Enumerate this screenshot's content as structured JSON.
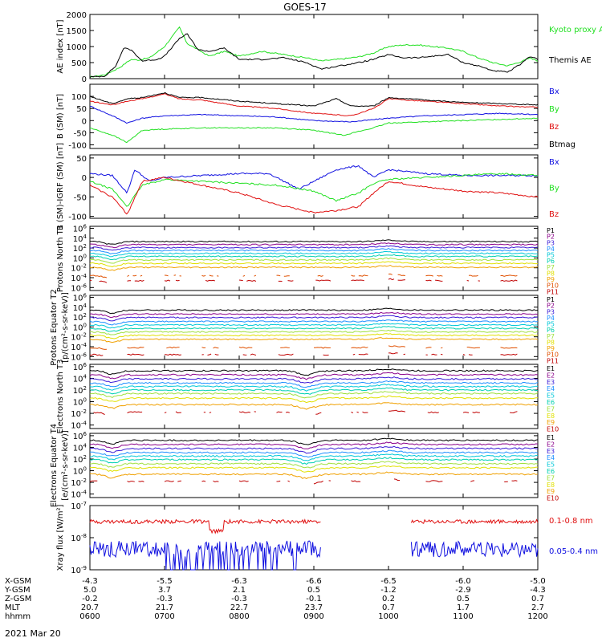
{
  "title": "GOES-17",
  "date_label": "2021 Mar 20",
  "colors": {
    "black": "#000000",
    "red": "#e01010",
    "green": "#22e022",
    "blue": "#1010e0",
    "p": [
      "#000000",
      "#8b008b",
      "#3a1ad6",
      "#1e90ff",
      "#00c8d8",
      "#00d0b0",
      "#a0e040",
      "#e0e000",
      "#f0a000",
      "#e05000",
      "#c00000"
    ],
    "e": [
      "#000000",
      "#8b008b",
      "#3a1ad6",
      "#1e90ff",
      "#00c8d8",
      "#00d0b0",
      "#a0e040",
      "#e0e000",
      "#f0a000",
      "#c00000"
    ]
  },
  "chart_data": [
    {
      "id": "ae",
      "type": "line",
      "ylabel": "AE index [nT]",
      "yticks": [
        "0",
        "500",
        "1000",
        "1500",
        "2000"
      ],
      "ylim": [
        0,
        2000
      ],
      "legend": [
        {
          "label": "Kyoto proxy AE",
          "color": "#22e022"
        },
        {
          "label": "Themis AE",
          "color": "#000000"
        }
      ],
      "series": [
        {
          "name": "Kyoto proxy AE",
          "color": "#22e022",
          "x": [
            6.0,
            6.2,
            6.4,
            6.55,
            6.65,
            6.8,
            7.0,
            7.2,
            7.3,
            7.45,
            7.6,
            7.8,
            8.0,
            8.3,
            8.6,
            8.9,
            9.1,
            9.4,
            9.6,
            9.8,
            10.0,
            10.2,
            10.4,
            10.6,
            10.8,
            11.0,
            11.2,
            11.4,
            11.6,
            11.8,
            11.9,
            12.0
          ],
          "y": [
            50,
            120,
            350,
            600,
            580,
            650,
            1000,
            1600,
            1100,
            900,
            700,
            850,
            700,
            850,
            750,
            650,
            550,
            620,
            680,
            800,
            1000,
            1050,
            1050,
            1000,
            950,
            850,
            650,
            500,
            400,
            550,
            650,
            550
          ]
        },
        {
          "name": "Themis AE",
          "color": "#000000",
          "x": [
            6.0,
            6.2,
            6.35,
            6.45,
            6.55,
            6.7,
            6.9,
            7.0,
            7.2,
            7.3,
            7.45,
            7.6,
            7.8,
            8.0,
            8.3,
            8.6,
            8.9,
            9.1,
            9.4,
            9.6,
            9.8,
            10.0,
            10.2,
            10.4,
            10.6,
            10.8,
            11.0,
            11.2,
            11.4,
            11.6,
            11.8,
            11.9,
            12.0
          ],
          "y": [
            50,
            80,
            400,
            950,
            900,
            550,
            600,
            700,
            1250,
            1400,
            900,
            850,
            950,
            600,
            600,
            650,
            500,
            300,
            420,
            500,
            600,
            750,
            650,
            650,
            700,
            750,
            500,
            400,
            250,
            200,
            500,
            700,
            600
          ]
        }
      ]
    },
    {
      "id": "bsm",
      "type": "line",
      "ylabel": "B (SM) [nT]",
      "yticks": [
        "-100",
        "-50",
        "0",
        "50",
        "100"
      ],
      "ylim": [
        -115,
        150
      ],
      "legend": [
        {
          "label": "Bx",
          "color": "#1010e0"
        },
        {
          "label": "By",
          "color": "#22e022"
        },
        {
          "label": "Bz",
          "color": "#e01010"
        },
        {
          "label": "Btmag",
          "color": "#000000"
        }
      ],
      "series": [
        {
          "name": "Bx",
          "color": "#1010e0",
          "x": [
            6.0,
            6.3,
            6.5,
            6.7,
            7.0,
            7.5,
            8.0,
            8.5,
            9.0,
            9.5,
            10.0,
            10.5,
            11.0,
            11.5,
            12.0
          ],
          "y": [
            60,
            20,
            -10,
            10,
            20,
            25,
            20,
            15,
            0,
            -5,
            10,
            20,
            25,
            30,
            25
          ]
        },
        {
          "name": "By",
          "color": "#22e022",
          "x": [
            6.0,
            6.3,
            6.5,
            6.7,
            7.0,
            7.5,
            8.0,
            8.5,
            9.0,
            9.4,
            9.8,
            10.0,
            10.5,
            11.0,
            11.5,
            12.0
          ],
          "y": [
            -30,
            -60,
            -90,
            -40,
            -35,
            -30,
            -30,
            -30,
            -40,
            -60,
            -30,
            -10,
            -5,
            0,
            5,
            10
          ]
        },
        {
          "name": "Bz",
          "color": "#e01010",
          "x": [
            6.0,
            6.3,
            6.5,
            6.7,
            7.0,
            7.2,
            7.5,
            8.0,
            8.5,
            9.0,
            9.5,
            9.8,
            10.0,
            10.5,
            11.0,
            11.5,
            12.0
          ],
          "y": [
            80,
            65,
            80,
            90,
            110,
            90,
            85,
            60,
            50,
            30,
            20,
            50,
            90,
            80,
            70,
            60,
            55
          ]
        },
        {
          "name": "Btmag",
          "color": "#000000",
          "x": [
            6.0,
            6.3,
            6.5,
            6.7,
            7.0,
            7.2,
            7.5,
            8.0,
            8.5,
            9.0,
            9.3,
            9.5,
            9.8,
            10.0,
            10.5,
            11.0,
            11.5,
            12.0
          ],
          "y": [
            100,
            70,
            90,
            95,
            115,
            95,
            95,
            80,
            70,
            60,
            90,
            60,
            60,
            95,
            85,
            75,
            70,
            65
          ]
        }
      ]
    },
    {
      "id": "dbsm",
      "type": "line",
      "ylabel": "B (SM)-IGRF (SM) [nT]",
      "yticks": [
        "-100",
        "-50",
        "0",
        "50"
      ],
      "ylim": [
        -105,
        58
      ],
      "legend": [
        {
          "label": "Bx",
          "color": "#1010e0"
        },
        {
          "label": "By",
          "color": "#22e022"
        },
        {
          "label": "Bz",
          "color": "#e01010"
        }
      ],
      "series": [
        {
          "name": "Bx",
          "color": "#1010e0",
          "x": [
            6.0,
            6.3,
            6.5,
            6.6,
            6.8,
            7.0,
            7.5,
            8.0,
            8.4,
            8.8,
            9.0,
            9.3,
            9.6,
            9.8,
            10.0,
            10.5,
            11.0,
            11.5,
            12.0
          ],
          "y": [
            10,
            5,
            -40,
            20,
            -10,
            0,
            5,
            10,
            10,
            -30,
            -10,
            20,
            30,
            0,
            20,
            10,
            5,
            5,
            5
          ]
        },
        {
          "name": "By",
          "color": "#22e022",
          "x": [
            6.0,
            6.3,
            6.5,
            6.7,
            7.0,
            7.5,
            8.0,
            8.5,
            9.0,
            9.3,
            9.6,
            9.8,
            10.0,
            10.5,
            11.0,
            11.5,
            12.0
          ],
          "y": [
            -10,
            -30,
            -75,
            -20,
            -5,
            -10,
            -15,
            -20,
            -35,
            -60,
            -40,
            -15,
            -5,
            0,
            5,
            10,
            5
          ]
        },
        {
          "name": "Bz",
          "color": "#e01010",
          "x": [
            6.0,
            6.3,
            6.5,
            6.7,
            7.0,
            7.5,
            8.0,
            8.5,
            9.0,
            9.3,
            9.6,
            9.8,
            10.0,
            10.5,
            11.0,
            11.5,
            12.0
          ],
          "y": [
            -20,
            -50,
            -95,
            -10,
            0,
            -20,
            -40,
            -70,
            -90,
            -85,
            -75,
            -40,
            -10,
            -25,
            -35,
            -40,
            -50
          ]
        }
      ]
    },
    {
      "id": "pn",
      "type": "line",
      "log": true,
      "ylabel": "Protons North T1",
      "yticks": [
        "10^-6",
        "10^-4",
        "10^-2",
        "10^0",
        "10^2",
        "10^4",
        "10^6"
      ],
      "ylim_exp": [
        -6.6,
        6.4
      ],
      "channels": [
        "P1",
        "P2",
        "P3",
        "P4",
        "P5",
        "P6",
        "P7",
        "P8",
        "P9",
        "P10",
        "P11"
      ],
      "levels": [
        3.3,
        2.7,
        2.1,
        1.5,
        0.9,
        0.3,
        -0.4,
        -1.1,
        -1.9,
        -3.6,
        -4.6
      ],
      "dashed_from": 9
    },
    {
      "id": "pe",
      "type": "line",
      "log": true,
      "ylabel": "Protons Equator T2",
      "ylabel2": "[p/(cm²-s-sr-keV)]",
      "yticks": [
        "10^-6",
        "10^-4",
        "10^-2",
        "10^0",
        "10^2",
        "10^4",
        "10^6"
      ],
      "ylim_exp": [
        -6.6,
        6.4
      ],
      "channels": [
        "P1",
        "P2",
        "P3",
        "P4",
        "P5",
        "P6",
        "P7",
        "P8",
        "P9",
        "P10",
        "P11"
      ],
      "levels": [
        3.4,
        2.6,
        1.9,
        1.1,
        0.4,
        -0.3,
        -1.0,
        -1.7,
        -2.5,
        -4.2,
        -5.6
      ],
      "dashed_from": 9
    },
    {
      "id": "en",
      "type": "line",
      "log": true,
      "ylabel": "Electrons North T3",
      "yticks": [
        "10^-4",
        "10^-2",
        "10^0",
        "10^2",
        "10^4",
        "10^6"
      ],
      "ylim_exp": [
        -4.6,
        6.4
      ],
      "channels": [
        "E1",
        "E2",
        "E3",
        "E4",
        "E5",
        "E6",
        "E7",
        "E8",
        "E9",
        "E10"
      ],
      "levels": [
        5.3,
        4.6,
        3.9,
        3.2,
        2.6,
        2.0,
        1.4,
        0.6,
        -0.5,
        -1.8
      ],
      "dashed_from": 9
    },
    {
      "id": "ee",
      "type": "line",
      "log": true,
      "ylabel": "Electrons Equator T4",
      "ylabel2": "[e/(cm²-s-sr-keV)]",
      "yticks": [
        "10^-4",
        "10^-2",
        "10^0",
        "10^2",
        "10^4",
        "10^6"
      ],
      "ylim_exp": [
        -4.6,
        6.4
      ],
      "channels": [
        "E1",
        "E2",
        "E3",
        "E4",
        "E5",
        "E6",
        "E7",
        "E8",
        "E9",
        "E10"
      ],
      "levels": [
        5.2,
        4.5,
        3.8,
        3.1,
        2.5,
        1.9,
        1.2,
        0.5,
        -0.6,
        -1.8
      ],
      "dashed_from": 9
    },
    {
      "id": "xray",
      "type": "line",
      "log": true,
      "ylabel": "Xray flux [W/m²]",
      "yticks": [
        "10^-9",
        "10^-8",
        "10^-7"
      ],
      "ylim_exp": [
        -9.0,
        -7.0
      ],
      "legend": [
        {
          "label": "0.1-0.8 nm",
          "color": "#e01010"
        },
        {
          "label": "0.05-0.4 nm",
          "color": "#1010e0"
        }
      ],
      "series": [
        {
          "name": "0.1-0.8 nm",
          "color": "#e01010",
          "level": -7.5,
          "gap": [
            9.1,
            10.3
          ]
        },
        {
          "name": "0.05-0.4 nm",
          "color": "#1010e0",
          "level": -8.35,
          "gap": [
            9.1,
            10.3
          ]
        }
      ]
    }
  ],
  "xaxis": {
    "rows": [
      {
        "label": "X-GSM",
        "values": [
          "-4.3",
          "-5.5",
          "-6.3",
          "-6.6",
          "-6.5",
          "-6.0",
          "-5.0"
        ]
      },
      {
        "label": "Y-GSM",
        "values": [
          "5.0",
          "3.7",
          "2.1",
          "0.5",
          "-1.2",
          "-2.9",
          "-4.3"
        ]
      },
      {
        "label": "Z-GSM",
        "values": [
          "-0.2",
          "-0.3",
          "-0.3",
          "-0.1",
          "0.2",
          "0.5",
          "0.7"
        ]
      },
      {
        "label": "MLT",
        "values": [
          "20.7",
          "21.7",
          "22.7",
          "23.7",
          "0.7",
          "1.7",
          "2.7"
        ]
      },
      {
        "label": "hhmm",
        "values": [
          "0600",
          "0700",
          "0800",
          "0900",
          "1000",
          "1100",
          "1200"
        ]
      }
    ]
  }
}
